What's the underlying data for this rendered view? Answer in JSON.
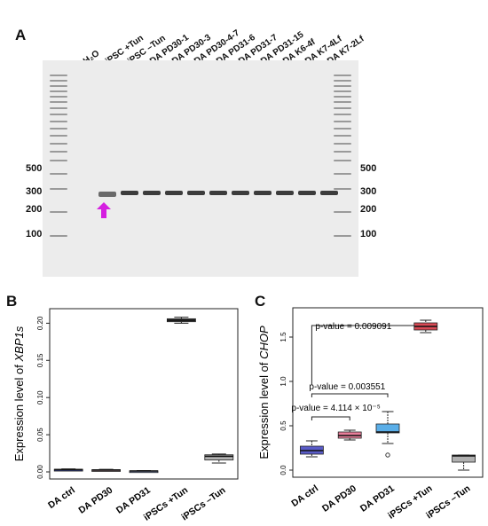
{
  "panel_a": {
    "letter": "A",
    "lanes": [
      "H₂O",
      "iPSC +Tun",
      "iPSC –Tun",
      "DA PD30-1",
      "DA PD30-3",
      "DA PD30-4-7",
      "DA PD31-6",
      "DA PD31-7",
      "DA PD31-15",
      "DA K6-4f",
      "DA K7-4Lf",
      "DA K7-2Lf"
    ],
    "left_sizes": [
      "500",
      "300",
      "200",
      "100"
    ],
    "right_sizes": [
      "500",
      "300",
      "200",
      "100"
    ],
    "arrow_color": "#d51fe0",
    "arrow_icon": "up-arrow-icon"
  },
  "panel_b": {
    "letter": "B"
  },
  "panel_c": {
    "letter": "C"
  },
  "chart_data": [
    {
      "type": "box",
      "ylabel": "Expression level of XBP1s",
      "categories": [
        "DA ctrl",
        "DA PD30",
        "DA PD31",
        "iPSCs +Tun",
        "iPSCs –Tun"
      ],
      "yticks": [
        "0.00",
        "0.05",
        "0.10",
        "0.15",
        "0.20"
      ],
      "ylim": [
        0,
        0.21
      ],
      "colors": [
        "#3b48a8",
        "#c8a0a8",
        "#8899c0",
        "#555555",
        "#b3b3b3"
      ],
      "boxes": [
        {
          "min": 0.002,
          "q1": 0.0025,
          "median": 0.003,
          "q3": 0.0035,
          "max": 0.004
        },
        {
          "min": 0.0015,
          "q1": 0.002,
          "median": 0.0025,
          "q3": 0.003,
          "max": 0.0035
        },
        {
          "min": 0.0008,
          "q1": 0.001,
          "median": 0.0012,
          "q3": 0.0015,
          "max": 0.0018
        },
        {
          "min": 0.2,
          "q1": 0.202,
          "median": 0.204,
          "q3": 0.206,
          "max": 0.208
        },
        {
          "min": 0.012,
          "q1": 0.016,
          "median": 0.021,
          "q3": 0.023,
          "max": 0.024
        }
      ]
    },
    {
      "type": "box",
      "ylabel": "Expression level of CHOP",
      "categories": [
        "DA ctrl",
        "DA PD30",
        "DA PD31",
        "iPSCs +Tun",
        "iPSCs –Tun"
      ],
      "yticks": [
        "0.0",
        "0.5",
        "1.0",
        "1.5"
      ],
      "ylim": [
        0,
        1.75
      ],
      "colors": [
        "#5a5cc8",
        "#e87e9a",
        "#5aaee8",
        "#d94a55",
        "#b0b0b0"
      ],
      "boxes": [
        {
          "min": 0.15,
          "q1": 0.18,
          "median": 0.22,
          "q3": 0.27,
          "max": 0.33
        },
        {
          "min": 0.34,
          "q1": 0.36,
          "median": 0.39,
          "q3": 0.43,
          "max": 0.45
        },
        {
          "min": 0.3,
          "q1": 0.42,
          "median": 0.43,
          "q3": 0.52,
          "max": 0.66,
          "outliers": [
            0.17
          ]
        },
        {
          "min": 1.55,
          "q1": 1.58,
          "median": 1.62,
          "q3": 1.66,
          "max": 1.69
        },
        {
          "min": 0.0,
          "q1": 0.09,
          "median": 0.16,
          "q3": 0.17,
          "max": 0.17
        }
      ],
      "annotations": [
        {
          "text": "p-value = 0.009091",
          "from": 0,
          "to": 3
        },
        {
          "text": "p-value = 0.003551",
          "from": 0,
          "to": 2
        },
        {
          "text": "p-value = 4.114 × 10⁻⁵",
          "from": 0,
          "to": 1
        }
      ]
    }
  ]
}
